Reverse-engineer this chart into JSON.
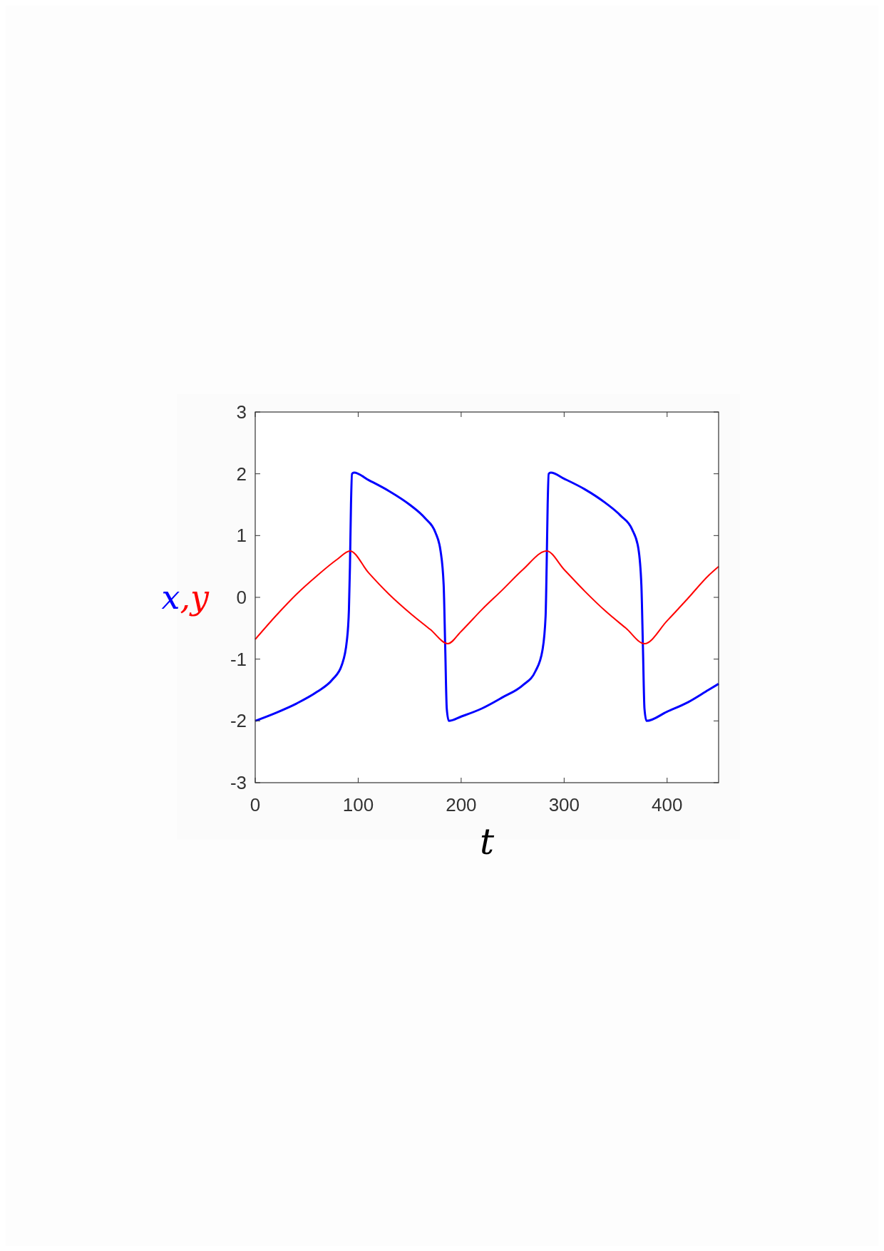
{
  "chart_data": {
    "type": "line",
    "xlabel": "t",
    "ylabel": "x,y",
    "xlim": [
      0,
      450
    ],
    "ylim": [
      -3,
      3
    ],
    "xticks": [
      0,
      100,
      200,
      300,
      400
    ],
    "yticks": [
      -3,
      -2,
      -1,
      0,
      1,
      2,
      3
    ],
    "grid": false,
    "marker": "none",
    "line_style": "solid",
    "series": [
      {
        "color": "#0000ff",
        "x": [
          0,
          20,
          40,
          60,
          75,
          84,
          89,
          91,
          92,
          93,
          94,
          96,
          110,
          130,
          150,
          165,
          175,
          180,
          183,
          184.5,
          186,
          188,
          200,
          220,
          240,
          260,
          272,
          279,
          282,
          283,
          284,
          285,
          287,
          300,
          320,
          340,
          355,
          366,
          372,
          375,
          376.5,
          378,
          380,
          400,
          420,
          440,
          450
        ],
        "values": [
          -2.0,
          -1.87,
          -1.72,
          -1.53,
          -1.33,
          -1.1,
          -0.7,
          -0.2,
          0.5,
          1.5,
          2.0,
          2.02,
          1.9,
          1.72,
          1.5,
          1.28,
          1.05,
          0.75,
          0.2,
          -0.8,
          -1.8,
          -2.0,
          -1.93,
          -1.8,
          -1.62,
          -1.42,
          -1.2,
          -0.85,
          -0.3,
          0.5,
          1.5,
          2.0,
          2.02,
          1.92,
          1.75,
          1.53,
          1.32,
          1.1,
          0.8,
          0.2,
          -0.8,
          -1.8,
          -2.0,
          -1.85,
          -1.7,
          -1.5,
          -1.4
        ]
      },
      {
        "color": "#ff0000",
        "x": [
          0,
          20,
          40,
          60,
          80,
          92,
          110,
          130,
          150,
          170,
          187,
          200,
          220,
          240,
          260,
          283,
          300,
          320,
          340,
          360,
          378,
          400,
          420,
          440,
          450
        ],
        "values": [
          -0.68,
          -0.3,
          0.05,
          0.35,
          0.62,
          0.75,
          0.4,
          0.05,
          -0.25,
          -0.52,
          -0.75,
          -0.55,
          -0.2,
          0.12,
          0.45,
          0.75,
          0.45,
          0.1,
          -0.22,
          -0.5,
          -0.75,
          -0.38,
          -0.02,
          0.35,
          0.5
        ]
      }
    ]
  }
}
